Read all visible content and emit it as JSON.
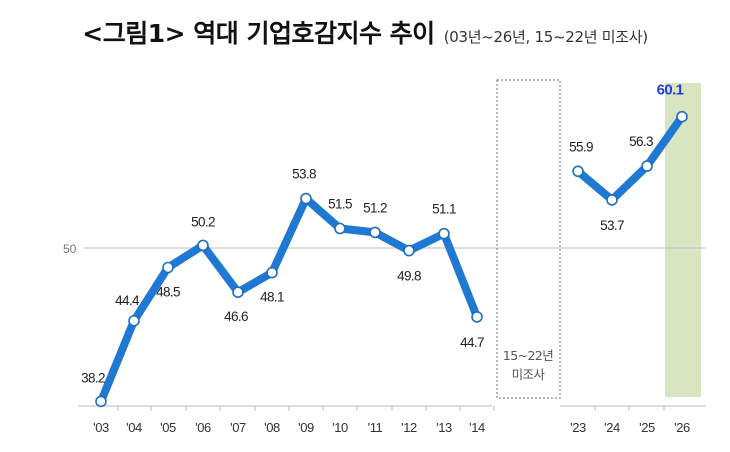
{
  "title": "<그림1> 역대 기업호감지수 추이",
  "subtitle": "(03년~26년, 15~22년 미조사)",
  "chart_data": {
    "type": "line",
    "title": "<그림1> 역대 기업호감지수 추이",
    "subtitle": "(03년~26년, 15~22년 미조사)",
    "categories": [
      "'03",
      "'04",
      "'05",
      "'06",
      "'07",
      "'08",
      "'09",
      "'10",
      "'11",
      "'12",
      "'13",
      "'14",
      "'23",
      "'24",
      "'25",
      "'26"
    ],
    "series": [
      {
        "values": [
          38.2,
          44.4,
          48.5,
          50.2,
          46.6,
          48.1,
          53.8,
          51.5,
          51.2,
          49.8,
          51.1,
          44.7,
          55.9,
          53.7,
          56.3,
          60.1
        ]
      }
    ],
    "value_labels": [
      "38.2",
      "44.4",
      "48.5",
      "50.2",
      "46.6",
      "48.1",
      "53.8",
      "51.5",
      "51.2",
      "49.8",
      "51.1",
      "44.7",
      "55.9",
      "53.7",
      "56.3",
      "60.1"
    ],
    "segments": [
      [
        0,
        11
      ],
      [
        12,
        15
      ]
    ],
    "reference_line": {
      "value": 50,
      "label": "50"
    },
    "gap_note": [
      "15~22년",
      "미조사"
    ],
    "highlight_index": 15,
    "ylim": [
      35,
      63
    ],
    "grid": false,
    "legend": "none",
    "colors": {
      "line": "#1f78d1",
      "marker_fill": "#ffffff",
      "marker_stroke": "#1f6fbf",
      "highlight_band": "#d7e6c0",
      "highlight_label": "#1f3fd8",
      "reference_line": "#bdbdbd",
      "axis": "#bbbbbb"
    }
  }
}
